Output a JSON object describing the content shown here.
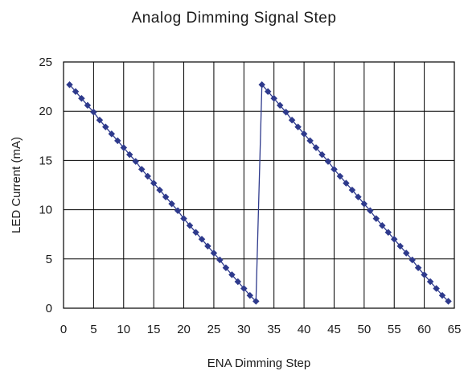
{
  "chart_data": {
    "type": "line",
    "title": "Analog Dimming Signal Step",
    "xlabel": "ENA Dimming Step",
    "ylabel": "LED Current (mA)",
    "xlim": [
      0,
      65
    ],
    "ylim": [
      0,
      25
    ],
    "xticks": [
      0,
      5,
      10,
      15,
      20,
      25,
      30,
      35,
      40,
      45,
      50,
      55,
      60,
      65
    ],
    "yticks": [
      0,
      5,
      10,
      15,
      20,
      25
    ],
    "grid": true,
    "legend": "none",
    "series": [
      {
        "color": "#2e3a8c",
        "x": [
          1,
          2,
          3,
          4,
          5,
          6,
          7,
          8,
          9,
          10,
          11,
          12,
          13,
          14,
          15,
          16,
          17,
          18,
          19,
          20,
          21,
          22,
          23,
          24,
          25,
          26,
          27,
          28,
          29,
          30,
          31,
          32,
          33,
          34,
          35,
          36,
          37,
          38,
          39,
          40,
          41,
          42,
          43,
          44,
          45,
          46,
          47,
          48,
          49,
          50,
          51,
          52,
          53,
          54,
          55,
          56,
          57,
          58,
          59,
          60,
          61,
          62,
          63,
          64
        ],
        "y": [
          22.7,
          22.0,
          21.3,
          20.6,
          19.9,
          19.1,
          18.4,
          17.7,
          17.0,
          16.3,
          15.6,
          14.9,
          14.1,
          13.4,
          12.7,
          12.0,
          11.3,
          10.6,
          9.9,
          9.1,
          8.4,
          7.7,
          7.0,
          6.3,
          5.6,
          4.9,
          4.1,
          3.4,
          2.7,
          2.0,
          1.3,
          0.7,
          22.7,
          22.0,
          21.3,
          20.6,
          19.9,
          19.1,
          18.4,
          17.7,
          17.0,
          16.3,
          15.6,
          14.9,
          14.1,
          13.4,
          12.7,
          12.0,
          11.3,
          10.6,
          9.9,
          9.1,
          8.4,
          7.7,
          7.0,
          6.3,
          5.6,
          4.9,
          4.1,
          3.4,
          2.7,
          2.0,
          1.3,
          0.7
        ]
      }
    ]
  }
}
